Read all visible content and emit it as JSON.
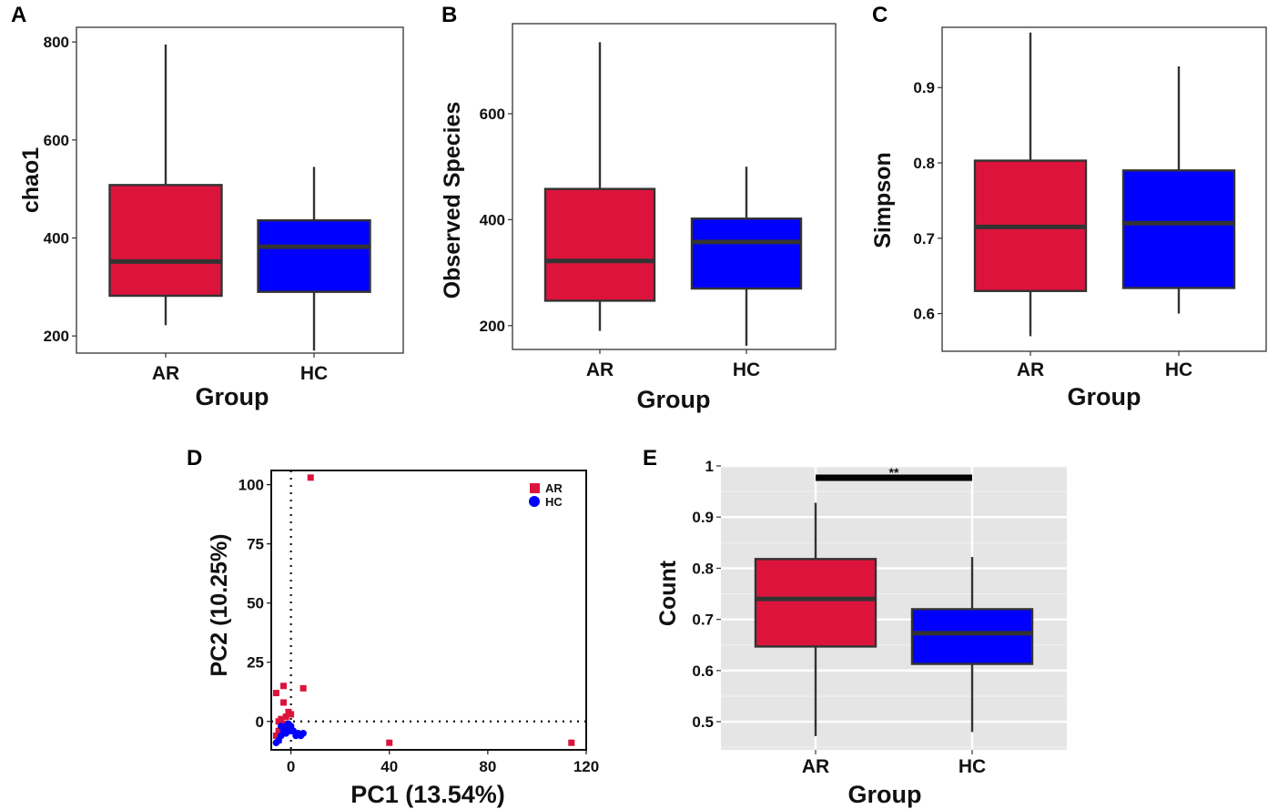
{
  "chart_data": [
    {
      "panel": "A",
      "type": "box",
      "title": "",
      "xlabel": "Group",
      "ylabel": "chao1",
      "categories": [
        "AR",
        "HC"
      ],
      "colors": [
        "#dc143c",
        "#0000ff"
      ],
      "ylim": [
        165,
        830
      ],
      "yticks": [
        200,
        400,
        600,
        800
      ],
      "boxes": [
        {
          "min": 222,
          "q1": 282,
          "median": 352,
          "q3": 508,
          "max": 795
        },
        {
          "min": 170,
          "q1": 290,
          "median": 382,
          "q3": 436,
          "max": 545
        }
      ]
    },
    {
      "panel": "B",
      "type": "box",
      "title": "",
      "xlabel": "Group",
      "ylabel": "Observed Species",
      "categories": [
        "AR",
        "HC"
      ],
      "colors": [
        "#dc143c",
        "#0000ff"
      ],
      "ylim": [
        155,
        770
      ],
      "yticks": [
        200,
        400,
        600
      ],
      "boxes": [
        {
          "min": 190,
          "q1": 247,
          "median": 322,
          "q3": 458,
          "max": 735
        },
        {
          "min": 162,
          "q1": 270,
          "median": 358,
          "q3": 402,
          "max": 500
        }
      ]
    },
    {
      "panel": "C",
      "type": "box",
      "title": "",
      "xlabel": "Group",
      "ylabel": "Simpson",
      "categories": [
        "AR",
        "HC"
      ],
      "colors": [
        "#dc143c",
        "#0000ff"
      ],
      "ylim": [
        0.55,
        0.98
      ],
      "yticks": [
        0.6,
        0.7,
        0.8,
        0.9
      ],
      "boxes": [
        {
          "min": 0.57,
          "q1": 0.63,
          "median": 0.715,
          "q3": 0.803,
          "max": 0.973
        },
        {
          "min": 0.6,
          "q1": 0.634,
          "median": 0.72,
          "q3": 0.79,
          "max": 0.928
        }
      ]
    },
    {
      "panel": "D",
      "type": "scatter",
      "title": "",
      "xlabel": "PC1 (13.54%)",
      "ylabel": "PC2 (10.25%)",
      "xlim": [
        -8,
        120
      ],
      "ylim": [
        -12,
        106
      ],
      "xticks": [
        0,
        40,
        80,
        120
      ],
      "yticks": [
        0,
        25,
        50,
        75,
        100
      ],
      "legend": [
        "AR",
        "HC"
      ],
      "legend_position": "top-right",
      "series": [
        {
          "name": "AR",
          "color": "#dc143c",
          "marker": "square",
          "points": [
            [
              8,
              103
            ],
            [
              -3,
              15
            ],
            [
              5,
              14
            ],
            [
              -6,
              12
            ],
            [
              -3,
              8
            ],
            [
              -1,
              4
            ],
            [
              0,
              3
            ],
            [
              -2,
              2
            ],
            [
              -4,
              1
            ],
            [
              -5,
              0
            ],
            [
              -3,
              -1
            ],
            [
              -4,
              -2
            ],
            [
              -5,
              -4
            ],
            [
              -6,
              -6
            ],
            [
              -5,
              -8
            ],
            [
              40,
              -9
            ],
            [
              114,
              -9
            ]
          ]
        },
        {
          "name": "HC",
          "color": "#0000ff",
          "marker": "circle",
          "points": [
            [
              -4,
              -2
            ],
            [
              -3,
              -3
            ],
            [
              -2,
              -2
            ],
            [
              -1,
              -3
            ],
            [
              0,
              -2
            ],
            [
              1,
              -4
            ],
            [
              2,
              -6
            ],
            [
              3,
              -5
            ],
            [
              4,
              -6
            ],
            [
              5,
              -5
            ],
            [
              -5,
              -8
            ],
            [
              -6,
              -9
            ],
            [
              -4,
              -6
            ],
            [
              -2,
              -5
            ],
            [
              -1,
              -1
            ],
            [
              -3,
              -4
            ],
            [
              0,
              -4
            ]
          ]
        }
      ]
    },
    {
      "panel": "E",
      "type": "box",
      "title": "",
      "xlabel": "Group",
      "ylabel": "Count",
      "categories": [
        "AR",
        "HC"
      ],
      "colors": [
        "#dc143c",
        "#0000ff"
      ],
      "ylim": [
        0.445,
        1.0
      ],
      "yticks": [
        0.5,
        0.6,
        0.7,
        0.8,
        0.9,
        1.0
      ],
      "grid": true,
      "significance": "**",
      "boxes": [
        {
          "min": 0.472,
          "q1": 0.647,
          "median": 0.74,
          "q3": 0.818,
          "max": 0.928
        },
        {
          "min": 0.48,
          "q1": 0.613,
          "median": 0.673,
          "q3": 0.72,
          "max": 0.822
        }
      ]
    }
  ]
}
